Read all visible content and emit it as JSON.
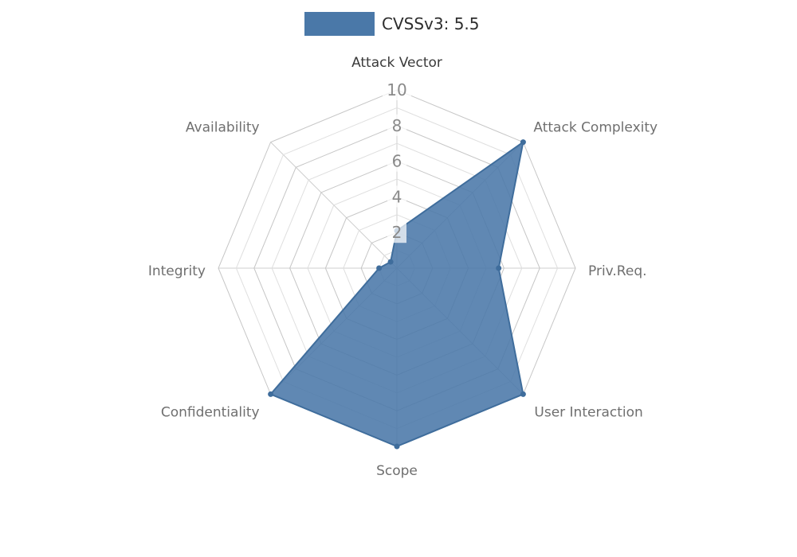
{
  "legend": {
    "label": "CVSSv3: 5.5",
    "swatch_color": "#4a78a8"
  },
  "chart_data": {
    "type": "radar",
    "title": "CVSSv3: 5.5",
    "legend_position": "top",
    "grid": true,
    "max": 10,
    "ticks": [
      2,
      4,
      6,
      8,
      10
    ],
    "axes": [
      "Attack Vector",
      "Attack Complexity",
      "Priv.Req.",
      "User Interaction",
      "Scope",
      "Confidentiality",
      "Integrity",
      "Availability"
    ],
    "series": [
      {
        "name": "CVSSv3: 5.5",
        "values": [
          2.1,
          10,
          5.7,
          10,
          10,
          10,
          1,
          0.5
        ]
      }
    ],
    "color": "#4a78a8",
    "stroke_color": "#3f6d9c",
    "grid_major_color": "#c6c6c6",
    "grid_minor_color": "#dfdfdf",
    "axis_label_color": "#6f6f6f",
    "first_axis_label_color": "#3a3a3a",
    "tick_label_color": "#8a8a8a"
  }
}
